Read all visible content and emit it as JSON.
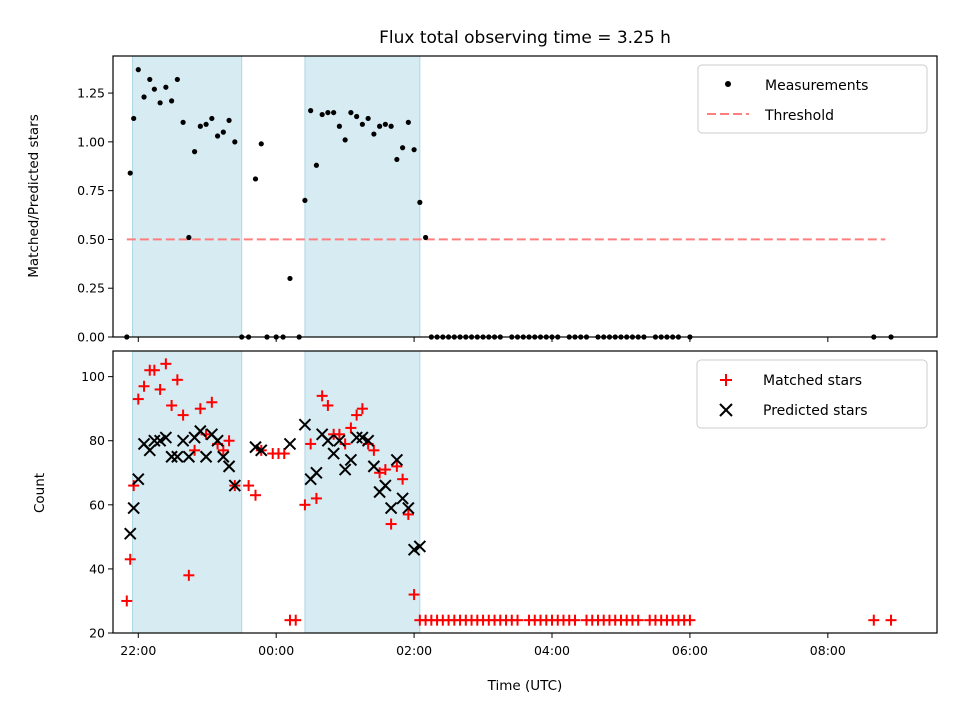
{
  "chart_data": [
    {
      "type": "scatter",
      "title": "Flux total observing time = 3.25 h",
      "xlabel": "",
      "ylabel": "Matched/Predicted stars",
      "xlim": [
        "21:38",
        "09:35"
      ],
      "ylim": [
        0,
        1.44
      ],
      "yticks": [
        "0.00",
        "0.25",
        "0.50",
        "0.75",
        "1.00",
        "1.25"
      ],
      "shaded_intervals": [
        [
          "21:55",
          "23:30"
        ],
        [
          "00:25",
          "02:05"
        ]
      ],
      "legend": {
        "position": "top-right",
        "entries": [
          "Measurements",
          "Threshold"
        ]
      },
      "threshold": {
        "name": "Threshold",
        "x_range": [
          "21:50",
          "08:50"
        ],
        "y": 0.5,
        "color": "#ff7f7f",
        "style": "dashed"
      },
      "series": [
        {
          "name": "Measurements",
          "marker": "dot",
          "color": "#000000",
          "points": [
            [
              "21:50",
              0.0
            ],
            [
              "21:53",
              0.84
            ],
            [
              "21:56",
              1.12
            ],
            [
              "22:00",
              1.37
            ],
            [
              "22:05",
              1.23
            ],
            [
              "22:10",
              1.32
            ],
            [
              "22:14",
              1.27
            ],
            [
              "22:19",
              1.2
            ],
            [
              "22:24",
              1.28
            ],
            [
              "22:29",
              1.21
            ],
            [
              "22:34",
              1.32
            ],
            [
              "22:39",
              1.1
            ],
            [
              "22:44",
              0.51
            ],
            [
              "22:49",
              0.95
            ],
            [
              "22:54",
              1.08
            ],
            [
              "22:59",
              1.09
            ],
            [
              "23:04",
              1.12
            ],
            [
              "23:09",
              1.03
            ],
            [
              "23:14",
              1.05
            ],
            [
              "23:19",
              1.11
            ],
            [
              "23:24",
              1.0
            ],
            [
              "23:30",
              0.0
            ],
            [
              "23:36",
              0.0
            ],
            [
              "23:42",
              0.81
            ],
            [
              "23:47",
              0.99
            ],
            [
              "23:52",
              0.0
            ],
            [
              "24:00",
              0.0
            ],
            [
              "24:06",
              0.0
            ],
            [
              "24:12",
              0.3
            ],
            [
              "24:20",
              0.0
            ],
            [
              "24:25",
              0.7
            ],
            [
              "24:30",
              1.16
            ],
            [
              "24:35",
              0.88
            ],
            [
              "24:40",
              1.14
            ],
            [
              "24:45",
              1.15
            ],
            [
              "24:50",
              1.15
            ],
            [
              "24:55",
              1.08
            ],
            [
              "25:00",
              1.01
            ],
            [
              "25:05",
              1.15
            ],
            [
              "25:10",
              1.13
            ],
            [
              "25:15",
              1.09
            ],
            [
              "25:20",
              1.12
            ],
            [
              "25:25",
              1.04
            ],
            [
              "25:30",
              1.08
            ],
            [
              "25:35",
              1.09
            ],
            [
              "25:40",
              1.08
            ],
            [
              "25:45",
              0.91
            ],
            [
              "25:50",
              0.97
            ],
            [
              "25:55",
              1.1
            ],
            [
              "26:00",
              0.96
            ],
            [
              "26:05",
              0.69
            ],
            [
              "26:10",
              0.51
            ],
            [
              "26:15",
              0.0
            ],
            [
              "26:20",
              0.0
            ],
            [
              "26:25",
              0.0
            ],
            [
              "26:30",
              0.0
            ],
            [
              "26:35",
              0.0
            ],
            [
              "26:40",
              0.0
            ],
            [
              "26:45",
              0.0
            ],
            [
              "26:50",
              0.0
            ],
            [
              "26:55",
              0.0
            ],
            [
              "27:00",
              0.0
            ],
            [
              "27:05",
              0.0
            ],
            [
              "27:10",
              0.0
            ],
            [
              "27:15",
              0.0
            ],
            [
              "27:25",
              0.0
            ],
            [
              "27:30",
              0.0
            ],
            [
              "27:35",
              0.0
            ],
            [
              "27:40",
              0.0
            ],
            [
              "27:45",
              0.0
            ],
            [
              "27:50",
              0.0
            ],
            [
              "27:55",
              0.0
            ],
            [
              "28:00",
              0.0
            ],
            [
              "28:05",
              0.0
            ],
            [
              "28:15",
              0.0
            ],
            [
              "28:20",
              0.0
            ],
            [
              "28:25",
              0.0
            ],
            [
              "28:30",
              0.0
            ],
            [
              "28:40",
              0.0
            ],
            [
              "28:45",
              0.0
            ],
            [
              "28:50",
              0.0
            ],
            [
              "28:55",
              0.0
            ],
            [
              "29:00",
              0.0
            ],
            [
              "29:05",
              0.0
            ],
            [
              "29:10",
              0.0
            ],
            [
              "29:15",
              0.0
            ],
            [
              "29:20",
              0.0
            ],
            [
              "29:30",
              0.0
            ],
            [
              "29:35",
              0.0
            ],
            [
              "29:40",
              0.0
            ],
            [
              "29:45",
              0.0
            ],
            [
              "29:50",
              0.0
            ],
            [
              "30:00",
              0.0
            ],
            [
              "32:40",
              0.0
            ],
            [
              "32:55",
              0.0
            ]
          ]
        }
      ]
    },
    {
      "type": "scatter",
      "title": "",
      "xlabel": "Time (UTC)",
      "ylabel": "Count",
      "xlim": [
        "21:38",
        "09:35"
      ],
      "ylim": [
        20,
        108
      ],
      "yticks": [
        "20",
        "40",
        "60",
        "80",
        "100"
      ],
      "xticks": [
        "22:00",
        "00:00",
        "02:00",
        "04:00",
        "06:00",
        "08:00"
      ],
      "shaded_intervals": [
        [
          "21:55",
          "23:30"
        ],
        [
          "00:25",
          "02:05"
        ]
      ],
      "legend": {
        "position": "top-right",
        "entries": [
          "Matched stars",
          "Predicted stars"
        ]
      },
      "series": [
        {
          "name": "Matched stars",
          "marker": "plus",
          "color": "#ff0000",
          "points": [
            [
              "21:50",
              30
            ],
            [
              "21:53",
              43
            ],
            [
              "21:56",
              66
            ],
            [
              "22:00",
              93
            ],
            [
              "22:05",
              97
            ],
            [
              "22:10",
              102
            ],
            [
              "22:14",
              102
            ],
            [
              "22:19",
              96
            ],
            [
              "22:24",
              104
            ],
            [
              "22:29",
              91
            ],
            [
              "22:34",
              99
            ],
            [
              "22:39",
              88
            ],
            [
              "22:44",
              38
            ],
            [
              "22:49",
              77
            ],
            [
              "22:54",
              90
            ],
            [
              "22:59",
              82
            ],
            [
              "23:04",
              92
            ],
            [
              "23:09",
              79
            ],
            [
              "23:14",
              77
            ],
            [
              "23:19",
              80
            ],
            [
              "23:24",
              66
            ],
            [
              "23:36",
              66
            ],
            [
              "23:42",
              63
            ],
            [
              "23:47",
              77
            ],
            [
              "23:57",
              76
            ],
            [
              "24:02",
              76
            ],
            [
              "24:07",
              76
            ],
            [
              "24:12",
              24
            ],
            [
              "24:17",
              24
            ],
            [
              "24:25",
              60
            ],
            [
              "24:30",
              79
            ],
            [
              "24:35",
              62
            ],
            [
              "24:40",
              94
            ],
            [
              "24:45",
              91
            ],
            [
              "24:50",
              82
            ],
            [
              "24:55",
              82
            ],
            [
              "25:00",
              79
            ],
            [
              "25:05",
              84
            ],
            [
              "25:10",
              88
            ],
            [
              "25:15",
              90
            ],
            [
              "25:20",
              79
            ],
            [
              "25:25",
              77
            ],
            [
              "25:30",
              70
            ],
            [
              "25:35",
              71
            ],
            [
              "25:40",
              54
            ],
            [
              "25:45",
              72
            ],
            [
              "25:50",
              68
            ],
            [
              "25:55",
              57
            ],
            [
              "26:00",
              32
            ],
            [
              "26:05",
              24
            ],
            [
              "26:10",
              24
            ],
            [
              "26:15",
              24
            ],
            [
              "26:20",
              24
            ],
            [
              "26:25",
              24
            ],
            [
              "26:30",
              24
            ],
            [
              "26:35",
              24
            ],
            [
              "26:40",
              24
            ],
            [
              "26:45",
              24
            ],
            [
              "26:50",
              24
            ],
            [
              "26:55",
              24
            ],
            [
              "27:00",
              24
            ],
            [
              "27:05",
              24
            ],
            [
              "27:10",
              24
            ],
            [
              "27:15",
              24
            ],
            [
              "27:20",
              24
            ],
            [
              "27:25",
              24
            ],
            [
              "27:30",
              24
            ],
            [
              "27:40",
              24
            ],
            [
              "27:45",
              24
            ],
            [
              "27:50",
              24
            ],
            [
              "27:55",
              24
            ],
            [
              "28:00",
              24
            ],
            [
              "28:05",
              24
            ],
            [
              "28:10",
              24
            ],
            [
              "28:15",
              24
            ],
            [
              "28:20",
              24
            ],
            [
              "28:30",
              24
            ],
            [
              "28:35",
              24
            ],
            [
              "28:40",
              24
            ],
            [
              "28:45",
              24
            ],
            [
              "28:50",
              24
            ],
            [
              "28:55",
              24
            ],
            [
              "29:00",
              24
            ],
            [
              "29:05",
              24
            ],
            [
              "29:10",
              24
            ],
            [
              "29:15",
              24
            ],
            [
              "29:25",
              24
            ],
            [
              "29:30",
              24
            ],
            [
              "29:35",
              24
            ],
            [
              "29:40",
              24
            ],
            [
              "29:45",
              24
            ],
            [
              "29:50",
              24
            ],
            [
              "29:55",
              24
            ],
            [
              "30:00",
              24
            ],
            [
              "32:40",
              24
            ],
            [
              "32:55",
              24
            ]
          ]
        },
        {
          "name": "Predicted stars",
          "marker": "cross",
          "color": "#000000",
          "points": [
            [
              "21:53",
              51
            ],
            [
              "21:56",
              59
            ],
            [
              "22:00",
              68
            ],
            [
              "22:05",
              79
            ],
            [
              "22:10",
              77
            ],
            [
              "22:14",
              80
            ],
            [
              "22:19",
              80
            ],
            [
              "22:24",
              81
            ],
            [
              "22:29",
              75
            ],
            [
              "22:34",
              75
            ],
            [
              "22:39",
              80
            ],
            [
              "22:44",
              75
            ],
            [
              "22:49",
              81
            ],
            [
              "22:54",
              83
            ],
            [
              "22:59",
              75
            ],
            [
              "23:04",
              82
            ],
            [
              "23:09",
              80
            ],
            [
              "23:14",
              75
            ],
            [
              "23:19",
              72
            ],
            [
              "23:24",
              66
            ],
            [
              "23:42",
              78
            ],
            [
              "23:47",
              77
            ],
            [
              "24:12",
              79
            ],
            [
              "24:25",
              85
            ],
            [
              "24:30",
              68
            ],
            [
              "24:35",
              70
            ],
            [
              "24:40",
              82
            ],
            [
              "24:45",
              80
            ],
            [
              "24:50",
              76
            ],
            [
              "24:55",
              80
            ],
            [
              "25:00",
              71
            ],
            [
              "25:05",
              74
            ],
            [
              "25:10",
              81
            ],
            [
              "25:15",
              81
            ],
            [
              "25:20",
              80
            ],
            [
              "25:25",
              72
            ],
            [
              "25:30",
              64
            ],
            [
              "25:35",
              66
            ],
            [
              "25:40",
              59
            ],
            [
              "25:45",
              74
            ],
            [
              "25:50",
              62
            ],
            [
              "25:55",
              59
            ],
            [
              "26:00",
              46
            ],
            [
              "26:05",
              47
            ]
          ]
        }
      ]
    }
  ]
}
